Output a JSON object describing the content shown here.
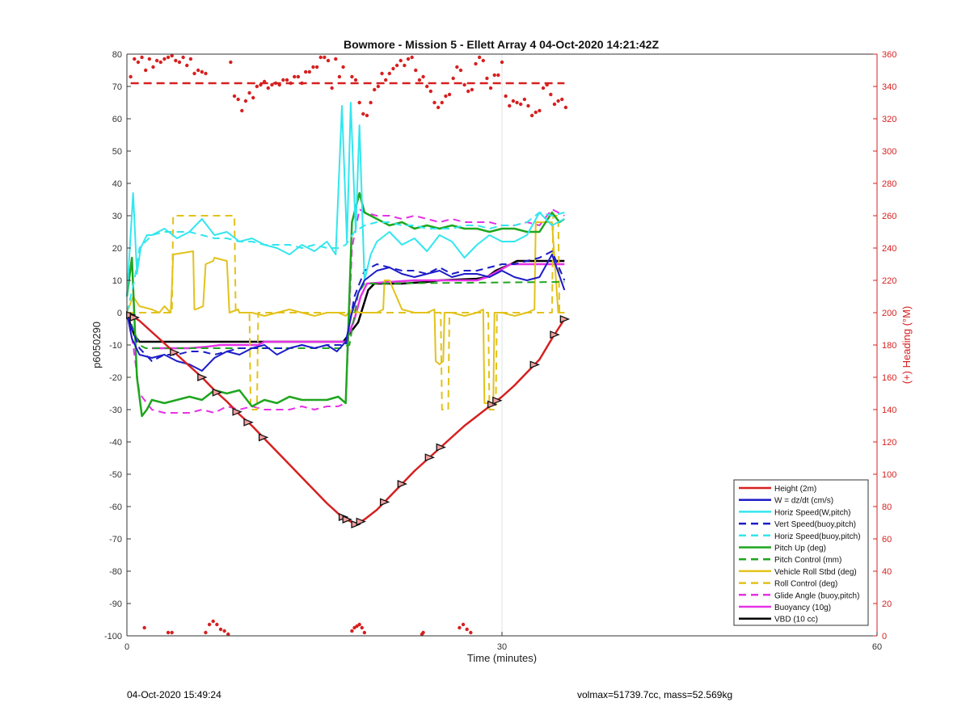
{
  "footer": {
    "timestamp": "04-Oct-2020 15:49:24",
    "summary": "volmax=51739.7cc, mass=52.569kg"
  },
  "chart_data": {
    "type": "line",
    "title": "Bowmore - Mission 5 - Ellett Array 4 04-Oct-2020 14:21:42Z",
    "xlabel": "Time (minutes)",
    "ylabel": "p6050290",
    "y2label": "(+) Heading (°M)",
    "xlim": [
      0,
      60
    ],
    "ylim": [
      -100,
      80
    ],
    "y2lim": [
      0,
      360
    ],
    "xticks": [
      0,
      30,
      60
    ],
    "yticks": [
      -100,
      -90,
      -80,
      -70,
      -60,
      -50,
      -40,
      -30,
      -20,
      -10,
      0,
      10,
      20,
      30,
      40,
      50,
      60,
      70,
      80
    ],
    "y2ticks": [
      0,
      20,
      40,
      60,
      80,
      100,
      120,
      140,
      160,
      180,
      200,
      220,
      240,
      260,
      280,
      300,
      320,
      340,
      360
    ],
    "grid": "x-only at 30",
    "legend_position": "bottom-right",
    "colors": {
      "axis_right": "#d62020"
    },
    "series": [
      {
        "name": "Height (2m)",
        "color": "#d62020",
        "style": "solid",
        "width": 2.5,
        "x": [
          0,
          1,
          2,
          3,
          4,
          5,
          6,
          7,
          8,
          9,
          10,
          11,
          12,
          13,
          14,
          15,
          16,
          17,
          17.6,
          18.3,
          19,
          20,
          21,
          22,
          23,
          24,
          25,
          26,
          27,
          28,
          29,
          30,
          31,
          32,
          33,
          34,
          35
        ],
        "y": [
          0,
          -2.5,
          -6,
          -9.5,
          -13,
          -16.5,
          -20,
          -24,
          -27.5,
          -31.5,
          -35,
          -39,
          -43,
          -47,
          -51,
          -55,
          -59,
          -62.5,
          -64,
          -65.5,
          -64,
          -61,
          -57,
          -53,
          -49,
          -45.5,
          -42,
          -38.5,
          -35,
          -32,
          -29,
          -26,
          -22.5,
          -18.5,
          -14.5,
          -8,
          -2
        ]
      },
      {
        "name": "W = dz/dt (cm/s)",
        "color": "#1c1cc8",
        "style": "solid",
        "width": 2,
        "x": [
          0,
          0.4,
          1,
          2,
          3,
          4,
          5,
          6,
          7,
          8,
          9,
          10,
          11,
          12,
          13,
          14,
          15,
          16,
          16.8,
          17.5,
          18,
          18.5,
          19,
          20,
          21,
          22,
          23,
          24,
          25,
          26,
          27,
          28,
          29,
          30,
          31,
          32,
          33,
          34,
          35
        ],
        "y": [
          0,
          -8,
          -13,
          -14,
          -13,
          -15,
          -16,
          -18,
          -14,
          -12,
          -13,
          -11,
          -10,
          -13,
          -11,
          -10,
          -11,
          -10,
          -12,
          -9,
          0,
          6,
          10,
          13,
          14,
          12,
          11,
          12,
          13,
          11,
          12,
          12,
          11,
          13,
          11,
          10,
          11,
          18,
          7
        ]
      },
      {
        "name": "Horiz Speed(W,pitch)",
        "color": "#33e6ee",
        "style": "solid",
        "width": 2,
        "x": [
          0,
          0.5,
          0.8,
          1.1,
          1.6,
          2,
          3,
          4,
          5,
          6,
          7,
          8,
          9,
          10,
          11,
          12,
          13,
          14,
          15,
          16,
          16.7,
          17.2,
          17.6,
          17.9,
          18.3,
          18.6,
          19,
          19.5,
          20,
          21,
          22,
          23,
          24,
          25,
          26,
          27,
          28,
          29,
          30,
          31,
          32,
          33,
          34,
          35
        ],
        "y": [
          5,
          37,
          12,
          20,
          24,
          24,
          26,
          23,
          25,
          29,
          24,
          25,
          22,
          23,
          21,
          20,
          18,
          21,
          19,
          22,
          18,
          64,
          22,
          65,
          25,
          58,
          10,
          18,
          22,
          25,
          21,
          23,
          19,
          24,
          22,
          17,
          21,
          24,
          22,
          22,
          24,
          31,
          27,
          29
        ]
      },
      {
        "name": "Vert Speed(buoy,pitch)",
        "color": "#1c1cc8",
        "style": "dashed",
        "width": 2,
        "x": [
          0,
          0.5,
          1,
          2,
          3,
          4,
          5,
          6,
          7,
          8,
          9,
          10,
          11,
          12,
          13,
          14,
          15,
          16,
          16.9,
          17.5,
          18.2,
          19,
          20,
          21,
          22,
          23,
          24,
          25,
          26,
          27,
          28,
          29,
          30,
          31,
          32,
          33,
          34,
          35
        ],
        "y": [
          0,
          -6,
          -11,
          -15,
          -13,
          -13,
          -12,
          -12,
          -13,
          -12,
          -11,
          -11,
          -11,
          -11,
          -11,
          -10,
          -11,
          -10,
          -10,
          -10,
          5,
          13,
          15,
          14,
          13,
          13,
          12,
          14,
          12,
          13,
          13,
          14,
          15,
          15,
          16,
          17,
          19,
          10
        ]
      },
      {
        "name": "Horiz Speed(buoy,pitch)",
        "color": "#33e6ee",
        "style": "dashed",
        "width": 2,
        "x": [
          0,
          0.6,
          1,
          2,
          3,
          4,
          5,
          6,
          7,
          8,
          9,
          10,
          11,
          12,
          13,
          14,
          15,
          16,
          16.9,
          17.5,
          18.2,
          19,
          20,
          21,
          22,
          23,
          24,
          25,
          26,
          27,
          28,
          29,
          30,
          31,
          32,
          33,
          34,
          35
        ],
        "y": [
          0,
          10,
          20,
          24,
          25,
          25,
          25,
          24,
          23,
          23,
          22,
          22,
          21,
          21,
          21,
          20,
          21,
          20,
          20,
          21,
          25,
          27,
          28,
          28,
          27,
          27,
          26,
          26,
          26,
          27,
          27,
          26,
          27,
          27,
          28,
          31,
          30,
          31
        ]
      },
      {
        "name": "Pitch Up (deg)",
        "color": "#1fa61f",
        "style": "solid",
        "width": 2.5,
        "x": [
          0,
          0.4,
          0.8,
          1.2,
          1.6,
          2,
          3,
          4,
          5,
          6,
          7,
          8,
          9,
          10,
          11,
          12,
          13,
          14,
          15,
          16,
          16.9,
          17.5,
          18,
          18.6,
          19,
          20,
          21,
          22,
          23,
          24,
          25,
          26,
          27,
          28,
          29,
          30,
          31,
          32,
          33,
          34,
          34.6,
          35
        ],
        "y": [
          5,
          17,
          -20,
          -32,
          -30,
          -27,
          -28,
          -27,
          -26,
          -27,
          -24,
          -25,
          -24,
          -29,
          -27,
          -28,
          -26,
          -27,
          -27,
          -27,
          -26,
          -28,
          28,
          37,
          31,
          29,
          27,
          28,
          26,
          27,
          26,
          27,
          26,
          26,
          25,
          26,
          26,
          25,
          25,
          31,
          28,
          29
        ]
      },
      {
        "name": "Pitch Control (mm)",
        "color": "#1fa61f",
        "style": "dashed",
        "width": 2,
        "x": [
          0,
          0.5,
          1,
          1.5,
          17,
          17.8,
          18.5,
          19,
          35
        ],
        "y": [
          0,
          -5,
          -10,
          -11,
          -11,
          -10,
          6,
          9,
          9.5
        ]
      },
      {
        "name": "Vehicle Roll Stbd (deg)",
        "color": "#e2c21a",
        "style": "solid",
        "width": 2,
        "x": [
          0,
          0.5,
          1,
          2,
          2.6,
          3,
          3.5,
          3.6,
          3.7,
          5.3,
          5.4,
          5.5,
          6.1,
          6.3,
          6.9,
          7,
          8,
          8.2,
          8.9,
          9,
          10,
          11,
          12,
          13,
          14,
          15,
          16,
          16.9,
          17.5,
          18,
          18.6,
          19,
          20,
          20.5,
          20.6,
          21,
          22,
          23,
          24,
          24.6,
          24.7,
          25,
          25.3,
          25.4,
          26,
          27,
          28,
          28.5,
          28.6,
          29,
          29.3,
          29.4,
          30,
          31,
          32,
          32.6,
          32.7,
          33,
          34,
          34.5,
          35
        ],
        "y": [
          0,
          5,
          2,
          1,
          0,
          2,
          0,
          8,
          18,
          19,
          1,
          1,
          2,
          15,
          16,
          17,
          16,
          0,
          1,
          0,
          0,
          -1,
          0,
          1,
          0,
          -1,
          0,
          0,
          -1,
          1,
          0,
          0,
          0,
          1,
          10,
          10,
          1,
          0,
          0,
          1,
          -15,
          -16,
          -15,
          0,
          0,
          -1,
          0,
          1,
          -28,
          -28,
          -28,
          0,
          0,
          -1,
          0,
          1,
          28,
          28,
          28,
          0,
          0
        ]
      },
      {
        "name": "Roll Control (deg)",
        "color": "#e2c21a",
        "style": "dashed",
        "width": 2,
        "x": [
          0,
          3.6,
          3.7,
          8.6,
          8.7,
          9.8,
          9.9,
          10.4,
          10.5,
          17.8,
          17.9,
          25.1,
          25.2,
          25.7,
          25.8,
          28.9,
          29,
          29.5,
          29.6,
          34,
          34.1,
          34.5,
          34.6,
          35
        ],
        "y": [
          0,
          0,
          30,
          30,
          0,
          0,
          -30,
          -30,
          0,
          0,
          0,
          0,
          -30,
          -30,
          0,
          0,
          -30,
          -30,
          0,
          0,
          30,
          30,
          0,
          0
        ]
      },
      {
        "name": "Glide Angle (buoy,pitch)",
        "color": "#e632e6",
        "style": "dashed",
        "width": 2,
        "x": [
          0,
          0.5,
          1,
          2,
          3,
          4,
          5,
          6,
          7,
          8,
          9,
          10,
          11,
          12,
          13,
          14,
          15,
          16,
          16.9,
          17.5,
          18,
          18.6,
          19,
          20,
          21,
          22,
          23,
          24,
          25,
          26,
          27,
          28,
          29,
          30,
          31,
          32,
          33,
          34,
          35
        ],
        "y": [
          0,
          -10,
          -25,
          -30,
          -31,
          -31,
          -31,
          -30,
          -31,
          -29,
          -30,
          -29,
          -30,
          -30,
          -30,
          -29,
          -30,
          -29,
          -29,
          -28,
          20,
          32,
          31,
          30,
          30,
          29,
          30,
          29,
          28,
          29,
          28,
          28,
          28,
          27,
          27,
          28,
          27,
          32,
          30
        ]
      },
      {
        "name": "Buoyancy (10g)",
        "color": "#e632e6",
        "style": "solid",
        "width": 2.5,
        "x": [
          2,
          5,
          6.5,
          7.5,
          8.5,
          10.5,
          11,
          17.5,
          18.2,
          18.7,
          19.2,
          21,
          23,
          25,
          28,
          28.8,
          30.7,
          34,
          35
        ],
        "y": [
          -11,
          -11,
          -10.5,
          -10,
          -10,
          -10,
          -9,
          -9,
          -2,
          5,
          9,
          9.5,
          10,
          10,
          10,
          11,
          15,
          15,
          15
        ]
      },
      {
        "name": "VBD (10 cc)",
        "color": "#000000",
        "style": "solid",
        "width": 2.5,
        "x": [
          0,
          0.3,
          0.6,
          1,
          17,
          17.3,
          18.5,
          19.3,
          19.8,
          21.5,
          22,
          24,
          25,
          28,
          28.8,
          29.5,
          30.7,
          31.2,
          34.5,
          35
        ],
        "y": [
          0,
          -4,
          -7,
          -9,
          -9,
          -9,
          -3,
          7,
          9,
          9,
          9,
          9.5,
          10,
          10.5,
          11,
          13,
          15,
          16,
          16,
          16
        ]
      }
    ],
    "heading": {
      "name": "Heading",
      "axis": "right",
      "color": "#d62020",
      "marker": "dot",
      "reference_line": 342,
      "reference_range": [
        0.3,
        35
      ],
      "x": [
        0.3,
        0.6,
        0.9,
        1.2,
        1.5,
        1.8,
        2.1,
        2.4,
        2.7,
        3.0,
        3.3,
        3.6,
        3.9,
        4.2,
        4.5,
        4.8,
        5.1,
        5.4,
        5.7,
        6.0,
        6.3,
        8.3,
        8.6,
        8.9,
        9.2,
        9.5,
        9.8,
        10.1,
        10.4,
        10.7,
        11.0,
        11.3,
        11.6,
        11.9,
        12.2,
        12.5,
        12.8,
        13.1,
        13.4,
        13.7,
        14.0,
        14.3,
        14.6,
        14.9,
        15.2,
        15.5,
        15.8,
        16.1,
        16.4,
        16.7,
        17.0,
        17.3,
        18.0,
        18.3,
        18.6,
        18.9,
        19.2,
        19.5,
        19.8,
        20.1,
        20.4,
        20.7,
        21.0,
        21.3,
        21.6,
        21.9,
        22.2,
        22.5,
        22.8,
        23.1,
        23.4,
        23.7,
        24.0,
        24.3,
        24.6,
        24.9,
        25.2,
        25.5,
        25.8,
        26.1,
        26.4,
        26.7,
        27.0,
        27.3,
        27.6,
        27.9,
        28.2,
        28.5,
        28.8,
        29.1,
        29.4,
        29.7,
        30.0,
        30.3,
        30.6,
        30.9,
        31.2,
        31.5,
        31.8,
        32.1,
        32.4,
        32.7,
        33.0,
        33.3,
        33.6,
        33.9,
        34.2,
        34.5,
        34.8,
        35.1,
        1.4,
        3.3,
        3.6,
        6.3,
        6.6,
        6.9,
        7.2,
        7.5,
        7.8,
        8.1,
        18.0,
        18.2,
        18.4,
        18.6,
        18.8,
        19.0,
        23.6,
        23.7,
        26.6,
        26.9,
        27.2,
        27.5
      ],
      "y": [
        346,
        357,
        355,
        358,
        350,
        357,
        352,
        356,
        355,
        357,
        358,
        359,
        356,
        355,
        358,
        353,
        357,
        348,
        350,
        349,
        348,
        355,
        334,
        332,
        325,
        331,
        336,
        333,
        340,
        341,
        343,
        339,
        341,
        342,
        341,
        344,
        344,
        342,
        346,
        346,
        342,
        349,
        349,
        352,
        352,
        358,
        358,
        356,
        339,
        357,
        346,
        352,
        346,
        344,
        330,
        323,
        322,
        330,
        338,
        340,
        348,
        344,
        348,
        351,
        353,
        356,
        353,
        357,
        358,
        350,
        344,
        346,
        340,
        337,
        330,
        327,
        330,
        334,
        335,
        345,
        352,
        350,
        341,
        337,
        338,
        354,
        358,
        356,
        345,
        339,
        347,
        347,
        355,
        334,
        328,
        331,
        330,
        329,
        332,
        328,
        322,
        324,
        325,
        339,
        341,
        335,
        329,
        331,
        332,
        327,
        5,
        2,
        2,
        2,
        7,
        9,
        7,
        4,
        3,
        1,
        3,
        5,
        6,
        7,
        5,
        2,
        1,
        2,
        5,
        7,
        4,
        2
      ]
    },
    "markers": {
      "description": "triangle markers along height trace",
      "x": [
        0.3,
        0.6,
        3.8,
        6,
        7.2,
        8.8,
        9.7,
        10.9,
        17.3,
        17.6,
        18.3,
        18.7,
        20.6,
        22,
        24.2,
        25.1,
        29.2,
        29.6,
        32.6,
        34.2,
        35
      ]
    }
  }
}
